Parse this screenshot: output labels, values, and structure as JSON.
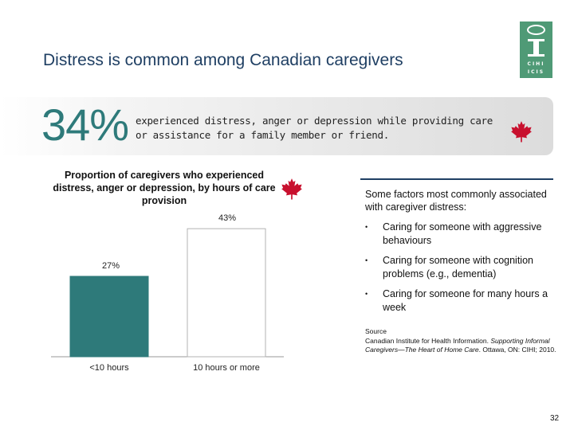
{
  "slide": {
    "title": "Distress is common among Canadian caregivers",
    "page_number": "32"
  },
  "logo": {
    "line1": "CIHI",
    "line2": "ICIS"
  },
  "headline": {
    "stat": "34%",
    "text": "experienced distress, anger or depression while providing care or assistance for a family member or friend."
  },
  "chart_data": {
    "type": "bar",
    "title": "Proportion of caregivers who experienced distress, anger or depression, by hours of care provision",
    "categories": [
      "<10 hours",
      "10 hours or more"
    ],
    "values": [
      27,
      43
    ],
    "data_labels": [
      "27%",
      "43%"
    ],
    "unit": "%",
    "ylim": [
      0,
      50
    ],
    "colors": [
      "#2e7a7a",
      "#ffffff"
    ],
    "bar_border": "#b3b3b3",
    "grid": false,
    "legend": "none"
  },
  "factors": {
    "intro": "Some factors most commonly associated with caregiver distress:",
    "bullet": "•",
    "items": [
      "Caring for someone with aggressive behaviours",
      "Caring for someone with cognition problems (e.g., dementia)",
      "Caring for someone for many hours a week"
    ]
  },
  "source": {
    "label": "Source",
    "line1": "Canadian Institute for Health Information.",
    "title_italic": "Supporting Informal Caregivers—The Heart of Home Care",
    "line3": "Ottawa, ON: CIHI; 2010."
  },
  "colors": {
    "title": "#1f3f63",
    "accent": "#2e7a7a",
    "maple_leaf": "#c8102e",
    "logo_green": "#4f9a76"
  },
  "icons": [
    "cihi-logo",
    "maple-leaf-icon"
  ]
}
